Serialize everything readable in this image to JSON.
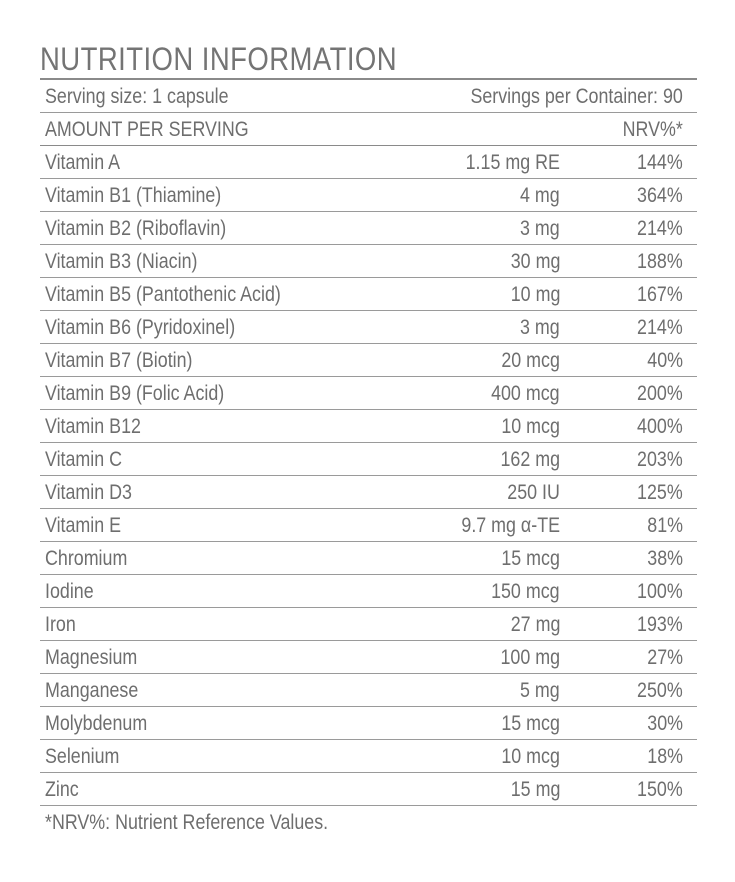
{
  "title": "NUTRITION INFORMATION",
  "serving": {
    "size_label": "Serving size: 1 capsule",
    "per_container_label": "Servings per Container: 90"
  },
  "header": {
    "amount_label": "AMOUNT PER SERVING",
    "nrv_label": "NRV%*"
  },
  "nutrients": [
    {
      "name": "Vitamin A",
      "amount": "1.15 mg RE",
      "nrv": "144%"
    },
    {
      "name": "Vitamin B1 (Thiamine)",
      "amount": "4 mg",
      "nrv": "364%"
    },
    {
      "name": "Vitamin B2 (Riboflavin)",
      "amount": "3 mg",
      "nrv": "214%"
    },
    {
      "name": "Vitamin B3 (Niacin)",
      "amount": "30 mg",
      "nrv": "188%"
    },
    {
      "name": "Vitamin B5 (Pantothenic Acid)",
      "amount": "10 mg",
      "nrv": "167%"
    },
    {
      "name": "Vitamin B6 (Pyridoxinel)",
      "amount": "3 mg",
      "nrv": "214%"
    },
    {
      "name": "Vitamin B7 (Biotin)",
      "amount": "20 mcg",
      "nrv": "40%"
    },
    {
      "name": "Vitamin B9 (Folic Acid)",
      "amount": "400 mcg",
      "nrv": "200%"
    },
    {
      "name": "Vitamin B12",
      "amount": "10 mcg",
      "nrv": "400%"
    },
    {
      "name": "Vitamin C",
      "amount": "162 mg",
      "nrv": "203%"
    },
    {
      "name": "Vitamin D3",
      "amount": "250 IU",
      "nrv": "125%"
    },
    {
      "name": "Vitamin E",
      "amount": "9.7 mg α-TE",
      "nrv": "81%"
    },
    {
      "name": "Chromium",
      "amount": "15 mcg",
      "nrv": "38%"
    },
    {
      "name": "Iodine",
      "amount": "150 mcg",
      "nrv": "100%"
    },
    {
      "name": "Iron",
      "amount": "27 mg",
      "nrv": "193%"
    },
    {
      "name": "Magnesium",
      "amount": "100 mg",
      "nrv": "27%"
    },
    {
      "name": "Manganese",
      "amount": "5 mg",
      "nrv": "250%"
    },
    {
      "name": "Molybdenum",
      "amount": "15 mcg",
      "nrv": "30%"
    },
    {
      "name": "Selenium",
      "amount": "10 mcg",
      "nrv": "18%"
    },
    {
      "name": "Zinc",
      "amount": "15 mg",
      "nrv": "150%"
    }
  ],
  "footnote": "*NRV%: Nutrient Reference Values."
}
